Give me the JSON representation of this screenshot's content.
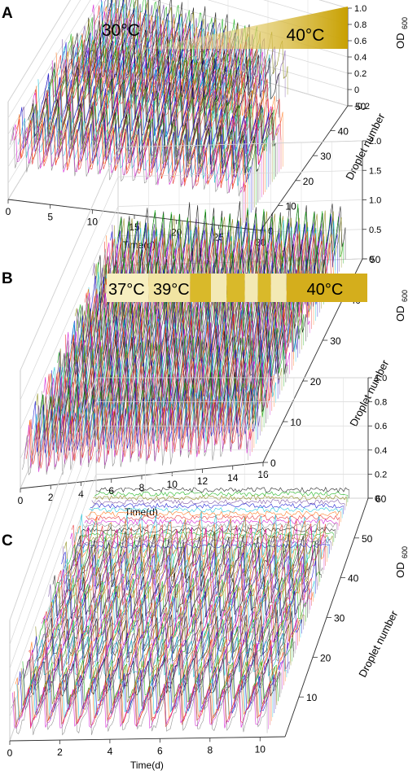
{
  "panels": [
    {
      "letter": "A",
      "temp_labels": [
        "30°C",
        "40°C"
      ],
      "temp_kind": "gradient",
      "chart_data": {
        "type": "line",
        "title": "",
        "xlabel": "Time(d)",
        "ylabel": "Droplet number",
        "zlabel_main": "OD",
        "zlabel_sub": "600",
        "x_ticks": [
          "0",
          "5",
          "10",
          "15",
          "20",
          "25",
          "30"
        ],
        "y_ticks": [
          "0",
          "10",
          "20",
          "30",
          "40",
          "50"
        ],
        "z_ticks": [
          "-0.2",
          "0",
          "0.2",
          "0.4",
          "0.6",
          "0.8",
          "1.0"
        ],
        "xlim": [
          0,
          30
        ],
        "ylim": [
          0,
          50
        ],
        "zlim": [
          -0.2,
          1.0
        ],
        "grid": true,
        "series_description": "OD600 oscillation traces for ~50 droplets over time"
      }
    },
    {
      "letter": "B",
      "temp_labels": [
        "37°C",
        "39°C",
        "40°C"
      ],
      "temp_kind": "steps",
      "chart_data": {
        "type": "line",
        "title": "",
        "xlabel": "Time(d)",
        "ylabel": "Droplet number",
        "zlabel_main": "OD",
        "zlabel_sub": "600",
        "x_ticks": [
          "0",
          "2",
          "4",
          "6",
          "8",
          "10",
          "12",
          "14",
          "16"
        ],
        "y_ticks": [
          "0",
          "10",
          "20",
          "30",
          "40",
          "50"
        ],
        "z_ticks": [
          "0",
          "0.5",
          "1.0",
          "1.5",
          "2.0"
        ],
        "xlim": [
          0,
          16
        ],
        "ylim": [
          0,
          50
        ],
        "zlim": [
          0,
          2.0
        ],
        "grid": true,
        "series_description": "OD600 oscillation traces for ~50 droplets over time"
      }
    },
    {
      "letter": "C",
      "temp_labels": [],
      "temp_kind": "none",
      "chart_data": {
        "type": "line",
        "title": "",
        "xlabel": "Time(d)",
        "ylabel": "Droplet number",
        "zlabel_main": "OD",
        "zlabel_sub": "600",
        "x_ticks": [
          "0",
          "2",
          "4",
          "6",
          "8",
          "10"
        ],
        "y_ticks": [
          "10",
          "20",
          "30",
          "40",
          "50",
          "60"
        ],
        "z_ticks": [
          "0",
          "0.2",
          "0.4",
          "0.6",
          "0.8",
          "1.0"
        ],
        "xlim": [
          0,
          11
        ],
        "ylim": [
          0,
          60
        ],
        "zlim": [
          0,
          1.0
        ],
        "grid": true,
        "series_description": "OD600 oscillation traces for ~60 droplets over time"
      }
    }
  ]
}
